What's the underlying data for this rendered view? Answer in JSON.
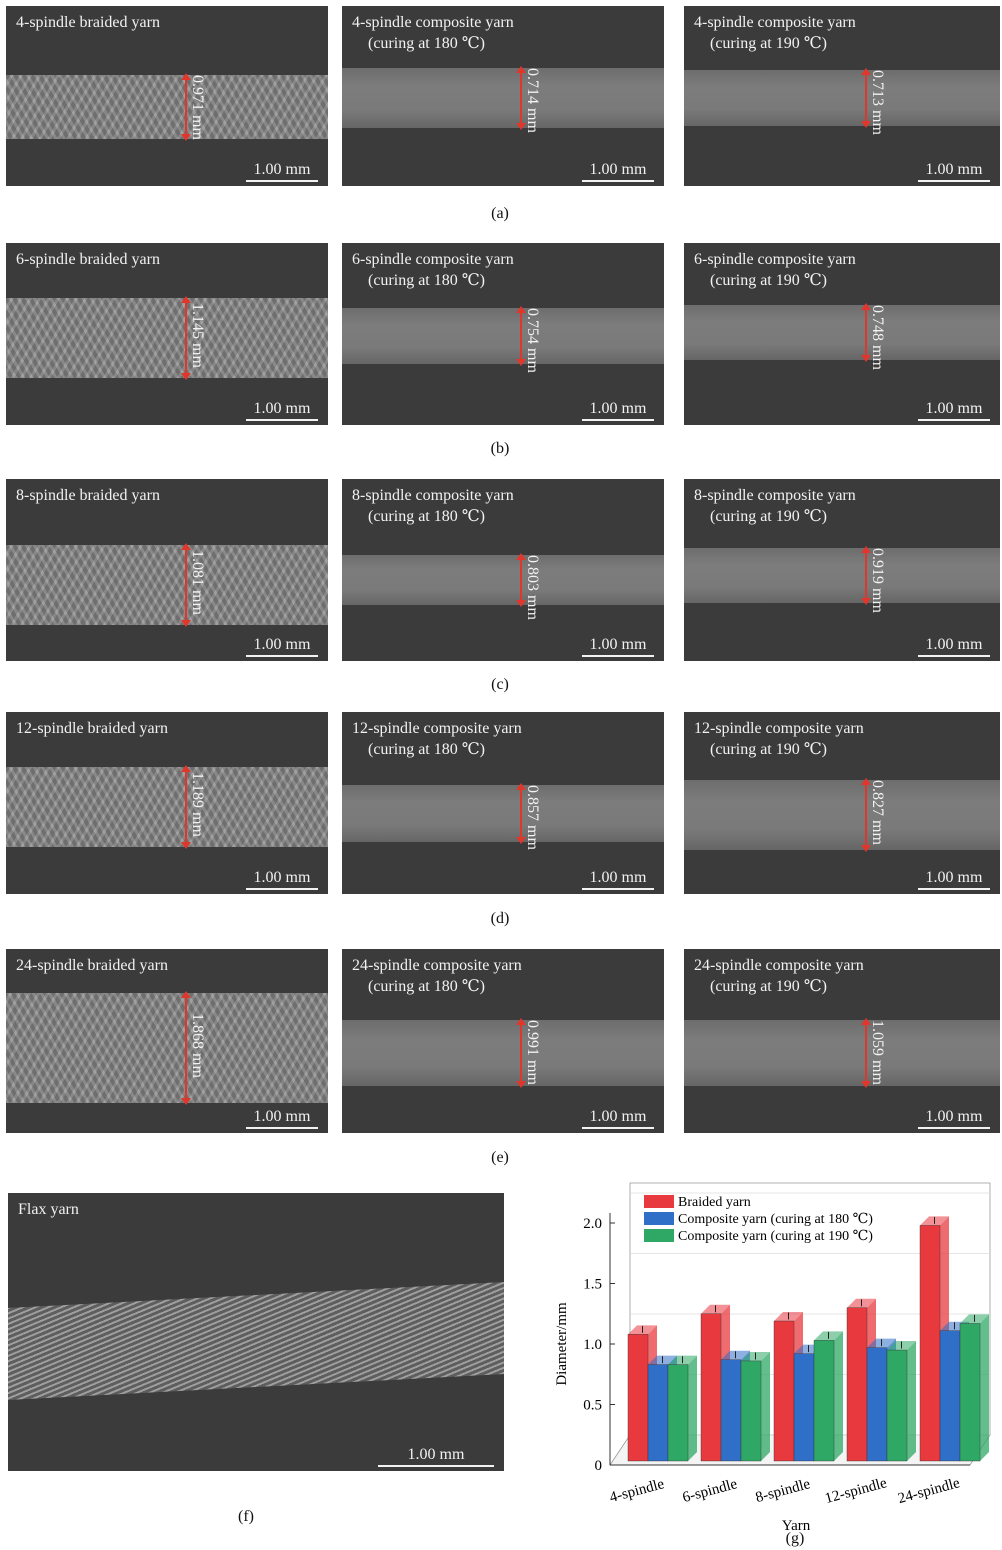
{
  "rows": [
    {
      "caption": "(a)",
      "panels": [
        {
          "title": "4-spindle braided yarn",
          "title2": "",
          "measurement": "0.971 mm",
          "scale": "1.00 mm"
        },
        {
          "title": "4-spindle composite yarn",
          "title2": "(curing at 180 ℃)",
          "measurement": "0.714 mm",
          "scale": "1.00 mm"
        },
        {
          "title": "4-spindle composite yarn",
          "title2": "(curing at 190 ℃)",
          "measurement": "0.713 mm",
          "scale": "1.00 mm"
        }
      ]
    },
    {
      "caption": "(b)",
      "panels": [
        {
          "title": "6-spindle braided yarn",
          "title2": "",
          "measurement": "1.145 mm",
          "scale": "1.00 mm"
        },
        {
          "title": "6-spindle composite yarn",
          "title2": "(curing at 180 ℃)",
          "measurement": "0.754 mm",
          "scale": "1.00 mm"
        },
        {
          "title": "6-spindle composite yarn",
          "title2": "(curing at 190 ℃)",
          "measurement": "0.748 mm",
          "scale": "1.00 mm"
        }
      ]
    },
    {
      "caption": "(c)",
      "panels": [
        {
          "title": "8-spindle braided yarn",
          "title2": "",
          "measurement": "1.081 mm",
          "scale": "1.00 mm"
        },
        {
          "title": "8-spindle composite yarn",
          "title2": "(curing at 180 ℃)",
          "measurement": "0.803 mm",
          "scale": "1.00 mm"
        },
        {
          "title": "8-spindle composite yarn",
          "title2": "(curing at 190 ℃)",
          "measurement": "0.919 mm",
          "scale": "1.00 mm"
        }
      ]
    },
    {
      "caption": "(d)",
      "panels": [
        {
          "title": "12-spindle braided yarn",
          "title2": "",
          "measurement": "1.189 mm",
          "scale": "1.00 mm"
        },
        {
          "title": "12-spindle composite yarn",
          "title2": "(curing at 180 ℃)",
          "measurement": "0.857 mm",
          "scale": "1.00 mm"
        },
        {
          "title": "12-spindle composite yarn",
          "title2": "(curing at 190 ℃)",
          "measurement": "0.827 mm",
          "scale": "1.00 mm"
        }
      ]
    },
    {
      "caption": "(e)",
      "panels": [
        {
          "title": "24-spindle braided yarn",
          "title2": "",
          "measurement": "1.868 mm",
          "scale": "1.00 mm"
        },
        {
          "title": "24-spindle composite yarn",
          "title2": "(curing at 180 ℃)",
          "measurement": "0.991 mm",
          "scale": "1.00 mm"
        },
        {
          "title": "24-spindle composite yarn",
          "title2": "(curing at 190 ℃)",
          "measurement": "1.059 mm",
          "scale": "1.00 mm"
        }
      ]
    }
  ],
  "flax": {
    "title": "Flax yarn",
    "scale": "1.00 mm",
    "caption": "(f)"
  },
  "chart_caption": "(g)",
  "chart_data": {
    "type": "bar",
    "categories": [
      "4-spindle",
      "6-spindle",
      "8-spindle",
      "12-spindle",
      "24-spindle"
    ],
    "series": [
      {
        "name": "Braided yarn",
        "color": "#e8393f",
        "values": [
          1.08,
          1.25,
          1.19,
          1.3,
          1.98
        ]
      },
      {
        "name": "Composite yarn (curing at 180 ℃)",
        "color": "#2f6fc7",
        "values": [
          0.83,
          0.87,
          0.92,
          0.97,
          1.11
        ]
      },
      {
        "name": "Composite yarn (curing at 190 ℃)",
        "color": "#2ea864",
        "values": [
          0.83,
          0.86,
          1.03,
          0.95,
          1.17
        ]
      }
    ],
    "xlabel": "Yarn",
    "ylabel": "Diameter/mm",
    "ylim": [
      0,
      2.0
    ],
    "yticks": [
      "0",
      "0.5",
      "1.0",
      "1.5",
      "2.0"
    ],
    "legend_position": "top-left"
  }
}
